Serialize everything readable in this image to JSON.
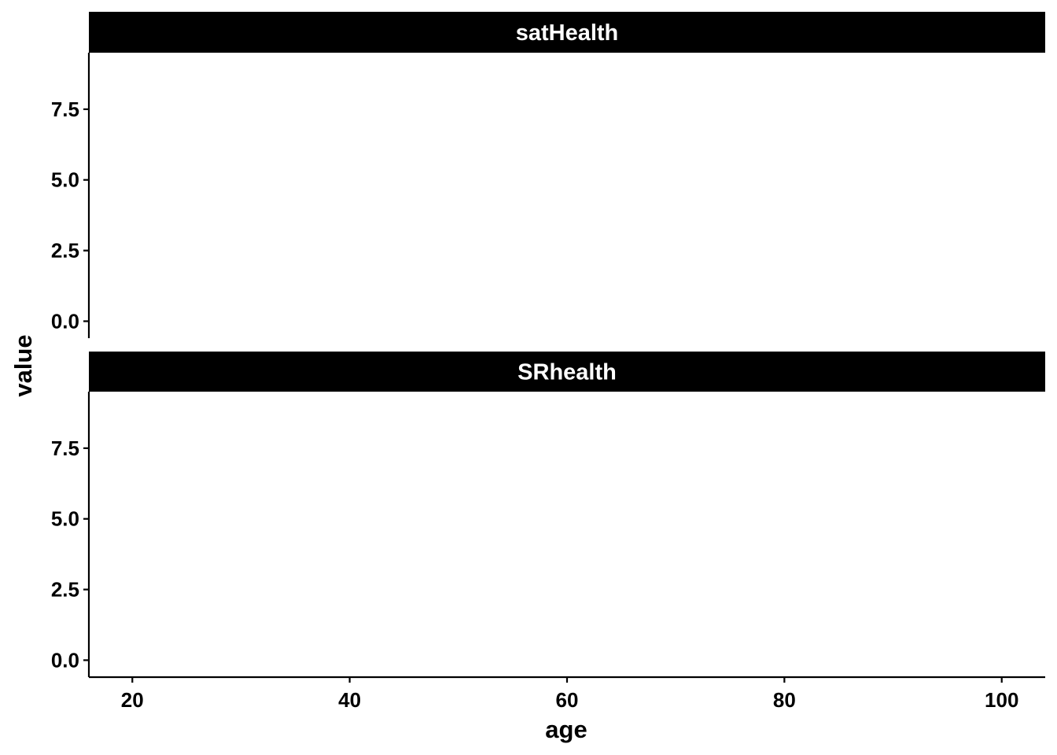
{
  "chart_data": {
    "type": "line",
    "facets": [
      {
        "strip_label": "satHealth",
        "series": []
      },
      {
        "strip_label": "SRhealth",
        "series": []
      }
    ],
    "xlabel": "age",
    "ylabel": "value",
    "x_ticks": [
      20,
      40,
      60,
      80,
      100
    ],
    "x_tick_labels": [
      "20",
      "40",
      "60",
      "80",
      "100"
    ],
    "y_ticks": [
      0,
      2.5,
      5,
      7.5
    ],
    "y_tick_labels": [
      "0.0",
      "2.5",
      "5.0",
      "7.5"
    ],
    "xlim": [
      16,
      104
    ],
    "ylim": [
      -0.6,
      9.5
    ],
    "grid": false,
    "strip_background": "#000000",
    "strip_text_color": "#ffffff",
    "axis_color": "#000000"
  }
}
